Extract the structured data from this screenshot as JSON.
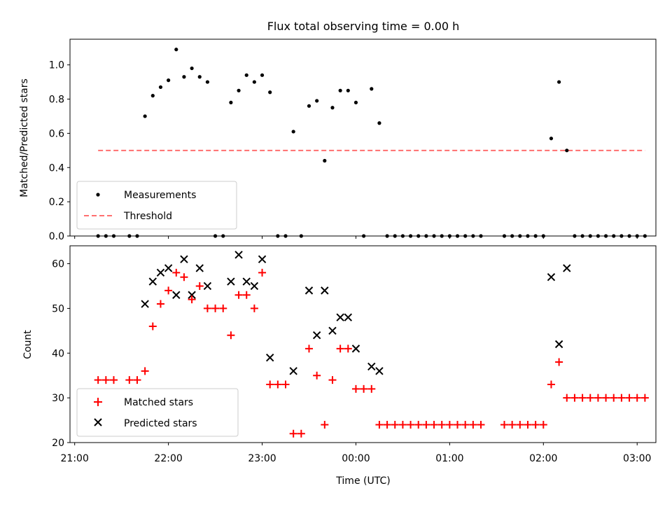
{
  "title": "Flux total observing time = 0.00 h",
  "colors": {
    "matched": "#ff0000",
    "predicted": "#000000",
    "threshold": "#ff6f6f",
    "measurement": "#000000"
  },
  "chart_data": [
    {
      "type": "scatter",
      "ylabel": "Matched/Predicted stars",
      "ylim": [
        0,
        1.15
      ],
      "yticks": [
        "0.0",
        "0.2",
        "0.4",
        "0.6",
        "0.8",
        "1.0"
      ],
      "legend_position": "lower-left",
      "series": [
        {
          "name": "Measurements",
          "x": [
            "21:15",
            "21:20",
            "21:25",
            "21:35",
            "21:40",
            "21:45",
            "21:50",
            "21:55",
            "22:00",
            "22:05",
            "22:10",
            "22:15",
            "22:20",
            "22:25",
            "22:30",
            "22:35",
            "22:40",
            "22:45",
            "22:50",
            "22:55",
            "23:00",
            "23:05",
            "23:10",
            "23:15",
            "23:20",
            "23:25",
            "23:30",
            "23:35",
            "23:40",
            "23:45",
            "23:50",
            "23:55",
            "24:00",
            "24:05",
            "24:10",
            "24:15",
            "24:20",
            "24:25",
            "24:30",
            "24:35",
            "24:40",
            "24:45",
            "24:50",
            "24:55",
            "25:00",
            "25:05",
            "25:10",
            "25:15",
            "25:20",
            "25:35",
            "25:40",
            "25:45",
            "25:50",
            "25:55",
            "26:00",
            "26:05",
            "26:10",
            "26:15",
            "26:20",
            "26:25",
            "26:30",
            "26:35",
            "26:40",
            "26:45",
            "26:50",
            "26:55",
            "27:00",
            "27:05"
          ],
          "y": [
            0,
            0,
            0,
            0,
            0,
            0.7,
            0.82,
            0.87,
            0.91,
            1.09,
            0.93,
            0.98,
            0.93,
            0.9,
            0,
            0,
            0.78,
            0.85,
            0.94,
            0.9,
            0.94,
            0.84,
            0,
            0,
            0.61,
            0,
            0.76,
            0.79,
            0.44,
            0.75,
            0.85,
            0.85,
            0.78,
            0,
            0.86,
            0.66,
            0,
            0,
            0,
            0,
            0,
            0,
            0,
            0,
            0,
            0,
            0,
            0,
            0,
            0,
            0,
            0,
            0,
            0,
            0,
            0.57,
            0.9,
            0.5,
            0,
            0,
            0,
            0,
            0,
            0,
            0,
            0,
            0,
            0
          ]
        },
        {
          "name": "Threshold",
          "x": [
            "21:15",
            "27:05"
          ],
          "y": [
            0.5,
            0.5
          ]
        }
      ]
    },
    {
      "type": "scatter",
      "xlabel": "Time (UTC)",
      "ylabel": "Count",
      "ylim": [
        20,
        64
      ],
      "yticks": [
        "20",
        "30",
        "40",
        "50",
        "60"
      ],
      "xticks": [
        "21:00",
        "22:00",
        "23:00",
        "00:00",
        "01:00",
        "02:00",
        "03:00"
      ],
      "xlim_hours": [
        20.95,
        27.2
      ],
      "legend_position": "lower-left",
      "series": [
        {
          "name": "Matched stars",
          "x": [
            "21:15",
            "21:20",
            "21:25",
            "21:35",
            "21:40",
            "21:45",
            "21:50",
            "21:55",
            "22:00",
            "22:05",
            "22:10",
            "22:15",
            "22:20",
            "22:25",
            "22:30",
            "22:35",
            "22:40",
            "22:45",
            "22:50",
            "22:55",
            "23:00",
            "23:05",
            "23:10",
            "23:15",
            "23:20",
            "23:25",
            "23:30",
            "23:35",
            "23:40",
            "23:45",
            "23:50",
            "23:55",
            "24:00",
            "24:05",
            "24:10",
            "24:15",
            "24:20",
            "24:25",
            "24:30",
            "24:35",
            "24:40",
            "24:45",
            "24:50",
            "24:55",
            "25:00",
            "25:05",
            "25:10",
            "25:15",
            "25:20",
            "25:35",
            "25:40",
            "25:45",
            "25:50",
            "25:55",
            "26:00",
            "26:05",
            "26:10",
            "26:15",
            "26:20",
            "26:25",
            "26:30",
            "26:35",
            "26:40",
            "26:45",
            "26:50",
            "26:55",
            "27:00",
            "27:05"
          ],
          "y": [
            34,
            34,
            34,
            34,
            34,
            36,
            46,
            51,
            54,
            58,
            57,
            52,
            55,
            50,
            50,
            50,
            44,
            53,
            53,
            50,
            58,
            33,
            33,
            33,
            22,
            22,
            41,
            35,
            24,
            34,
            41,
            41,
            32,
            32,
            32,
            24,
            24,
            24,
            24,
            24,
            24,
            24,
            24,
            24,
            24,
            24,
            24,
            24,
            24,
            24,
            24,
            24,
            24,
            24,
            24,
            33,
            38,
            30,
            30,
            30,
            30,
            30,
            30,
            30,
            30,
            30,
            30,
            30
          ]
        },
        {
          "name": "Predicted stars",
          "x": [
            "21:45",
            "21:50",
            "21:55",
            "22:00",
            "22:05",
            "22:10",
            "22:15",
            "22:20",
            "22:25",
            "22:40",
            "22:45",
            "22:50",
            "22:55",
            "23:00",
            "23:05",
            "23:20",
            "23:30",
            "23:35",
            "23:40",
            "23:45",
            "23:50",
            "23:55",
            "24:00",
            "24:10",
            "24:15",
            "26:05",
            "26:10",
            "26:15"
          ],
          "y": [
            51,
            56,
            58,
            59,
            53,
            61,
            53,
            59,
            55,
            56,
            62,
            56,
            55,
            61,
            39,
            36,
            54,
            44,
            54,
            45,
            48,
            48,
            41,
            37,
            36,
            57,
            42,
            59
          ]
        }
      ]
    }
  ]
}
